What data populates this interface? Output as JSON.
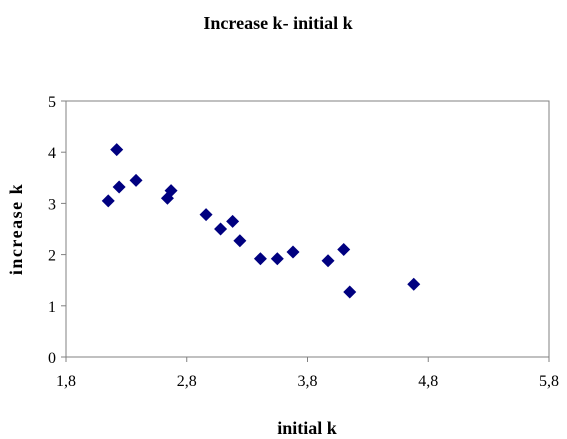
{
  "chart_data": {
    "type": "scatter",
    "title": "Increase k- initial k",
    "xlabel": "initial k",
    "ylabel": "increase k",
    "xlim": [
      1.8,
      5.8
    ],
    "ylim": [
      0,
      5
    ],
    "x_ticks": [
      "1,8",
      "2,8",
      "3,8",
      "4,8",
      "5,8"
    ],
    "x_tick_values": [
      1.8,
      2.8,
      3.8,
      4.8,
      5.8
    ],
    "y_ticks": [
      "0",
      "1",
      "2",
      "3",
      "4",
      "5"
    ],
    "y_tick_values": [
      0,
      1,
      2,
      3,
      4,
      5
    ],
    "grid": false,
    "marker": "diamond",
    "marker_color": "#000080",
    "series": [
      {
        "points": [
          {
            "x": 2.15,
            "y": 3.05
          },
          {
            "x": 2.22,
            "y": 4.05
          },
          {
            "x": 2.24,
            "y": 3.32
          },
          {
            "x": 2.38,
            "y": 3.45
          },
          {
            "x": 2.64,
            "y": 3.1
          },
          {
            "x": 2.67,
            "y": 3.25
          },
          {
            "x": 2.96,
            "y": 2.78
          },
          {
            "x": 3.08,
            "y": 2.5
          },
          {
            "x": 3.18,
            "y": 2.65
          },
          {
            "x": 3.24,
            "y": 2.27
          },
          {
            "x": 3.41,
            "y": 1.92
          },
          {
            "x": 3.55,
            "y": 1.92
          },
          {
            "x": 3.68,
            "y": 2.05
          },
          {
            "x": 3.97,
            "y": 1.88
          },
          {
            "x": 4.1,
            "y": 2.1
          },
          {
            "x": 4.15,
            "y": 1.27
          },
          {
            "x": 4.68,
            "y": 1.42
          }
        ]
      }
    ]
  }
}
